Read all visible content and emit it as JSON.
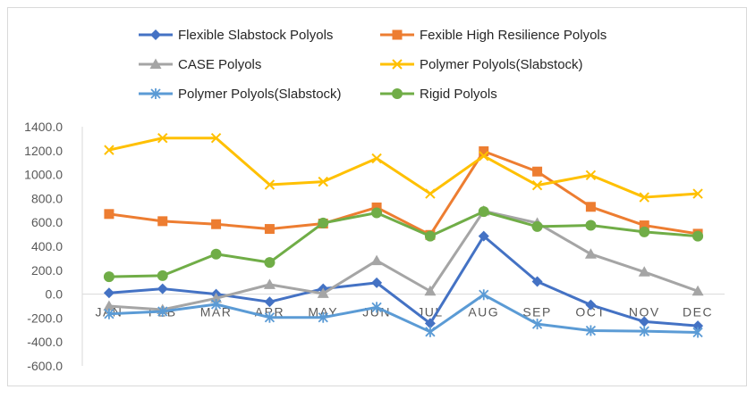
{
  "chart_data": {
    "type": "line",
    "title": "",
    "xlabel": "",
    "ylabel": "",
    "ylim": [
      -600,
      1400
    ],
    "ytick_step": 200,
    "y_tick_labels": [
      "1400.0",
      "1200.0",
      "1000.0",
      "800.0",
      "600.0",
      "400.0",
      "200.0",
      "0.0",
      "-200.0",
      "-400.0",
      "-600.0"
    ],
    "categories": [
      "JAN",
      "FEB",
      "MAR",
      "APR",
      "MAY",
      "JUN",
      "JUL",
      "AUG",
      "SEP",
      "OCT",
      "NOV",
      "DEC"
    ],
    "legend_position": "top",
    "series": [
      {
        "name": "Flexible Slabstock Polyols",
        "color": "#4472C4",
        "marker": "diamond",
        "values": [
          10,
          45,
          0,
          -65,
          45,
          95,
          -245,
          485,
          105,
          -90,
          -230,
          -265
        ]
      },
      {
        "name": "Fexible High Resilience Polyols",
        "color": "#ED7D31",
        "marker": "square",
        "values": [
          670,
          610,
          585,
          545,
          590,
          725,
          495,
          1195,
          1025,
          730,
          575,
          505
        ]
      },
      {
        "name": "CASE Polyols",
        "color": "#A5A5A5",
        "marker": "triangle",
        "values": [
          -100,
          -130,
          -35,
          80,
          5,
          280,
          25,
          695,
          595,
          335,
          185,
          25
        ]
      },
      {
        "name": "Polymer Polyols(Slabstock)",
        "color": "#FFC000",
        "marker": "x",
        "values": [
          1205,
          1305,
          1305,
          915,
          940,
          1135,
          840,
          1155,
          910,
          995,
          810,
          840
        ]
      },
      {
        "name": "Polymer Polyols(Slabstock)",
        "color": "#5B9BD5",
        "marker": "star",
        "values": [
          -165,
          -145,
          -85,
          -195,
          -195,
          -110,
          -315,
          -5,
          -250,
          -305,
          -310,
          -320
        ]
      },
      {
        "name": "Rigid Polyols",
        "color": "#70AD47",
        "marker": "circle",
        "values": [
          145,
          155,
          335,
          265,
          595,
          680,
          485,
          690,
          565,
          575,
          520,
          485
        ]
      }
    ]
  }
}
